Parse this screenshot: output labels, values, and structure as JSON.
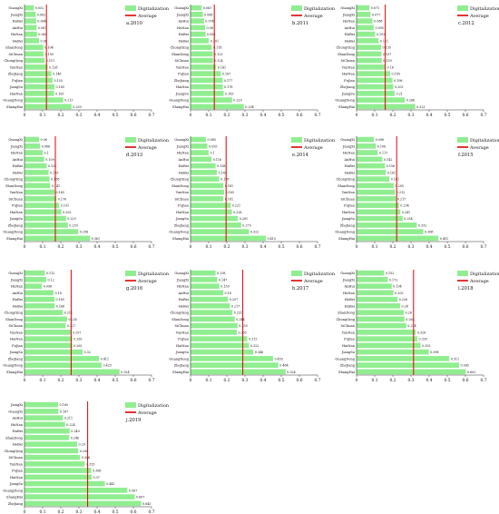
{
  "colors": {
    "bar": "#90ee90",
    "average": "#e00000",
    "axis": "#333333",
    "text": "#111111"
  },
  "legend": {
    "bar_label": "Digitalization",
    "line_label": "Average"
  },
  "chart_data": [
    {
      "type": "bar",
      "orientation": "horizontal",
      "panel_label": "a.2010",
      "xlim": [
        0,
        0.7
      ],
      "xticks": [
        0,
        0.1,
        0.2,
        0.3,
        0.4,
        0.5,
        0.6,
        0.7
      ],
      "average": 0.121,
      "categories": [
        "GuangXi",
        "JiangXi",
        "HuBei",
        "AnHui",
        "HuNan",
        "HeBei",
        "ShanDong",
        "SiChuan",
        "ChongQing",
        "YunNan",
        "ZheJiang",
        "FuJian",
        "JiangSu",
        "HaiNan",
        "GuangDong",
        "ShangHai"
      ],
      "values": [
        0.052,
        0.062,
        0.064,
        0.067,
        0.069,
        0.08,
        0.104,
        0.105,
        0.111,
        0.128,
        0.148,
        0.155,
        0.165,
        0.163,
        0.213,
        0.259
      ]
    },
    {
      "type": "bar",
      "orientation": "horizontal",
      "panel_label": "b.2011",
      "xlim": [
        0,
        0.7
      ],
      "xticks": [
        0,
        0.1,
        0.2,
        0.3,
        0.4,
        0.5,
        0.6,
        0.7
      ],
      "average": 0.131,
      "categories": [
        "GuangXi",
        "JiangXi",
        "AnHui",
        "HuNan",
        "HuBei",
        "HeBei",
        "ChongQing",
        "ShanDong",
        "SiChuan",
        "YunNan",
        "FuJian",
        "ZheJiang",
        "HaiNan",
        "JiangSu",
        "GuangDong",
        "ShangHai"
      ],
      "values": [
        0.061,
        0.068,
        0.074,
        0.08,
        0.083,
        0.101,
        0.118,
        0.123,
        0.124,
        0.141,
        0.167,
        0.177,
        0.178,
        0.183,
        0.229,
        0.294
      ]
    },
    {
      "type": "bar",
      "orientation": "horizontal",
      "panel_label": "c.2012",
      "xlim": [
        0,
        0.7
      ],
      "xticks": [
        0,
        0.1,
        0.2,
        0.3,
        0.4,
        0.5,
        0.6,
        0.7
      ],
      "average": 0.158,
      "categories": [
        "GuangXi",
        "JiangXi",
        "HuNan",
        "AnHui",
        "HuBei",
        "HeBei",
        "ChongQing",
        "ShanDong",
        "SiChuan",
        "YunNan",
        "HaiNan",
        "FuJian",
        "ZheJiang",
        "JiangSu",
        "GuangDong",
        "ShangHai"
      ],
      "values": [
        0.071,
        0.077,
        0.088,
        0.095,
        0.102,
        0.121,
        0.135,
        0.137,
        0.139,
        0.16,
        0.185,
        0.198,
        0.203,
        0.21,
        0.266,
        0.323
      ]
    },
    {
      "type": "bar",
      "orientation": "horizontal",
      "panel_label": "d.2013",
      "xlim": [
        0,
        0.7
      ],
      "xticks": [
        0,
        0.1,
        0.2,
        0.3,
        0.4,
        0.5,
        0.6,
        0.7
      ],
      "average": 0.17,
      "categories": [
        "GuangXi",
        "JiangXi",
        "HuNan",
        "AnHui",
        "HuBei",
        "HeBei",
        "ChongQing",
        "ShanDong",
        "YunNan",
        "SiChuan",
        "FuJian",
        "HaiNan",
        "JiangSu",
        "ZheJiang",
        "GuangDong",
        "ShangHai"
      ],
      "values": [
        0.08,
        0.086,
        0.1,
        0.109,
        0.122,
        0.133,
        0.138,
        0.141,
        0.165,
        0.176,
        0.191,
        0.203,
        0.229,
        0.239,
        0.296,
        0.361
      ]
    },
    {
      "type": "bar",
      "orientation": "horizontal",
      "panel_label": "e.2014",
      "xlim": [
        0,
        0.7
      ],
      "xticks": [
        0,
        0.1,
        0.2,
        0.3,
        0.4,
        0.5,
        0.6,
        0.7
      ],
      "average": 0.196,
      "categories": [
        "GuangXi",
        "JiangXi",
        "HuNan",
        "AnHui",
        "HuBei",
        "HeBei",
        "ChongQing",
        "ShanDong",
        "YunNan",
        "SiChuan",
        "FuJian",
        "HaiNan",
        "JiangSu",
        "ZheJiang",
        "GuangDong",
        "ShangHai"
      ],
      "values": [
        0.085,
        0.093,
        0.1,
        0.116,
        0.138,
        0.145,
        0.158,
        0.181,
        0.185,
        0.181,
        0.221,
        0.228,
        0.261,
        0.279,
        0.322,
        0.415
      ]
    },
    {
      "type": "bar",
      "orientation": "horizontal",
      "panel_label": "f.2015",
      "xlim": [
        0,
        0.7
      ],
      "xticks": [
        0,
        0.1,
        0.2,
        0.3,
        0.4,
        0.5,
        0.6,
        0.7
      ],
      "average": 0.221,
      "categories": [
        "GuangXi",
        "JiangXi",
        "HuNan",
        "AnHui",
        "HuBei",
        "HeBei",
        "ChongQing",
        "ShanDong",
        "YunNan",
        "SiChuan",
        "FuJian",
        "HaiNan",
        "JiangSu",
        "ZheJiang",
        "GuangDong",
        "ShangHai"
      ],
      "values": [
        0.096,
        0.106,
        0.117,
        0.142,
        0.156,
        0.161,
        0.181,
        0.205,
        0.212,
        0.217,
        0.234,
        0.241,
        0.254,
        0.332,
        0.368,
        0.451
      ]
    },
    {
      "type": "bar",
      "orientation": "horizontal",
      "panel_label": "g.2016",
      "xlim": [
        0,
        0.7
      ],
      "xticks": [
        0,
        0.1,
        0.2,
        0.3,
        0.4,
        0.5,
        0.6,
        0.7
      ],
      "average": 0.257,
      "categories": [
        "GuangXi",
        "JiangXi",
        "HuNan",
        "AnHui",
        "HuBei",
        "HeBei",
        "ChongQing",
        "ShanDong",
        "SiChuan",
        "YunNan",
        "HaiNan",
        "FuJian",
        "JiangSu",
        "ZheJiang",
        "GuangDong",
        "ShangHai"
      ],
      "values": [
        0.112,
        0.12,
        0.096,
        0.16,
        0.165,
        0.166,
        0.211,
        0.235,
        0.227,
        0.257,
        0.263,
        0.263,
        0.32,
        0.411,
        0.425,
        0.524
      ]
    },
    {
      "type": "bar",
      "orientation": "horizontal",
      "panel_label": "h.2017",
      "xlim": [
        0,
        0.7
      ],
      "xticks": [
        0,
        0.1,
        0.2,
        0.3,
        0.4,
        0.5,
        0.6,
        0.7
      ],
      "average": 0.288,
      "categories": [
        "GuangXi",
        "JiangXi",
        "HuNan",
        "AnHui",
        "HuBei",
        "HeBei",
        "ChongQing",
        "ShanDong",
        "SiChuan",
        "YunNan",
        "FuJian",
        "HaiNan",
        "JiangSu",
        "GuangDong",
        "ZheJiang",
        "ShangHai"
      ],
      "values": [
        0.138,
        0.147,
        0.159,
        0.18,
        0.207,
        0.217,
        0.231,
        0.244,
        0.259,
        0.255,
        0.313,
        0.322,
        0.346,
        0.455,
        0.484,
        0.524
      ]
    },
    {
      "type": "bar",
      "orientation": "horizontal",
      "panel_label": "i.2018",
      "xlim": [
        0,
        0.7
      ],
      "xticks": [
        0,
        0.1,
        0.2,
        0.3,
        0.4,
        0.5,
        0.6,
        0.7
      ],
      "average": 0.314,
      "categories": [
        "GuangXi",
        "JiangXi",
        "AnHui",
        "HuNan",
        "HeBei",
        "HuBei",
        "ShanDong",
        "ChongQing",
        "SiChuan",
        "YunNan",
        "FuJian",
        "HaiNan",
        "JiangSu",
        "GuangDong",
        "ZheJiang",
        "ShangHai"
      ],
      "values": [
        0.152,
        0.172,
        0.194,
        0.203,
        0.226,
        0.24,
        0.26,
        0.264,
        0.274,
        0.326,
        0.335,
        0.353,
        0.398,
        0.511,
        0.565,
        0.602
      ]
    },
    {
      "type": "bar",
      "orientation": "horizontal",
      "panel_label": "j.2019",
      "xlim": [
        0,
        0.7
      ],
      "xticks": [
        0,
        0.1,
        0.2,
        0.3,
        0.4,
        0.5,
        0.6,
        0.7
      ],
      "average": 0.348,
      "categories": [
        "JiangXi",
        "GuangXi",
        "AnHui",
        "HuNan",
        "HuBei",
        "ShanDong",
        "HeBei",
        "ChongQing",
        "SiChuan",
        "YunNan",
        "FuJian",
        "HaiNan",
        "JiangSu",
        "GuangDong",
        "ShangHai",
        "ZheJiang"
      ],
      "values": [
        0.185,
        0.187,
        0.211,
        0.224,
        0.249,
        0.246,
        0.29,
        0.296,
        0.306,
        0.333,
        0.368,
        0.37,
        0.443,
        0.567,
        0.607,
        0.643
      ]
    }
  ]
}
